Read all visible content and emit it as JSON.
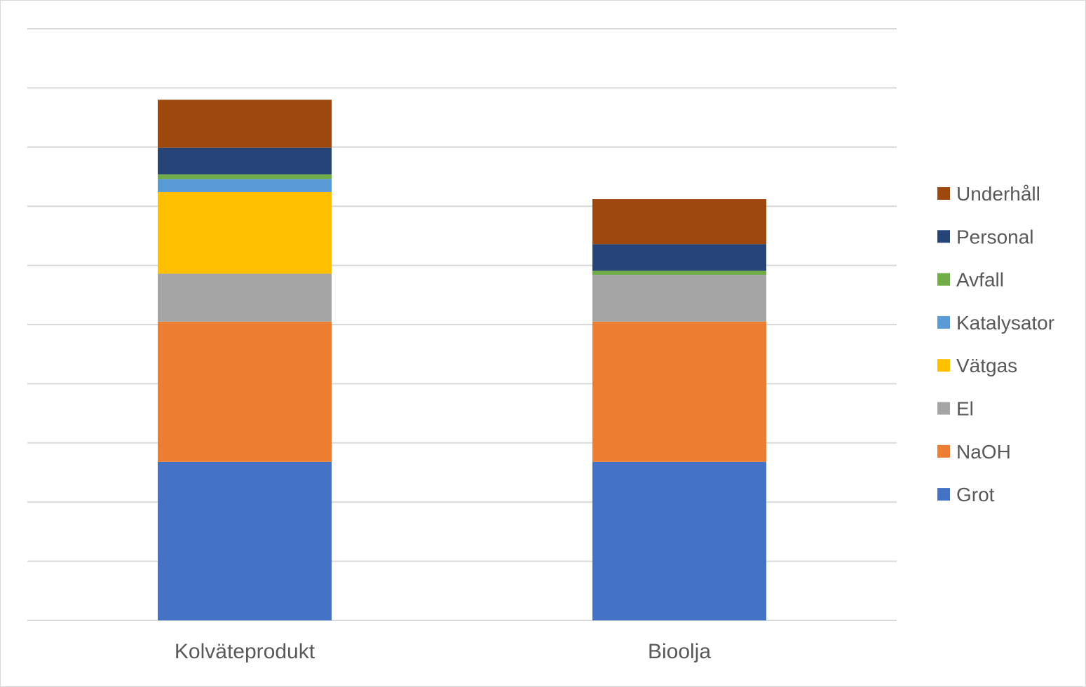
{
  "chart_data": {
    "type": "bar",
    "stacked": true,
    "title": "",
    "xlabel": "",
    "ylabel": "",
    "ylim": [
      0,
      10
    ],
    "grid": true,
    "legend_position": "right",
    "categories": [
      "Kolväteprodukt",
      "Bioolja"
    ],
    "series": [
      {
        "name": "Grot",
        "color": "#4472C4",
        "values": [
          2.68,
          2.68
        ]
      },
      {
        "name": "NaOH",
        "color": "#ED7D31",
        "values": [
          2.37,
          2.37
        ]
      },
      {
        "name": "El",
        "color": "#A5A5A5",
        "values": [
          0.81,
          0.79
        ]
      },
      {
        "name": "Vätgas",
        "color": "#FFC000",
        "values": [
          1.38,
          0.0
        ]
      },
      {
        "name": "Katalysator",
        "color": "#5B9BD5",
        "values": [
          0.22,
          0.0
        ]
      },
      {
        "name": "Avfall",
        "color": "#70AD47",
        "values": [
          0.08,
          0.07
        ]
      },
      {
        "name": "Personal",
        "color": "#264478",
        "values": [
          0.45,
          0.45
        ]
      },
      {
        "name": "Underhåll",
        "color": "#9E480E",
        "values": [
          0.81,
          0.76
        ]
      }
    ]
  }
}
